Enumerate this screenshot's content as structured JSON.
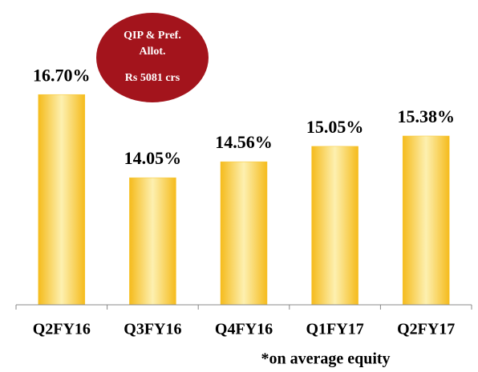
{
  "chart_data": {
    "type": "bar",
    "categories": [
      "Q2FY16",
      "Q3FY16",
      "Q4FY16",
      "Q1FY17",
      "Q2FY17"
    ],
    "values": [
      16.7,
      14.05,
      14.56,
      15.05,
      15.38
    ],
    "value_labels": [
      "16.70%",
      "14.05%",
      "14.56%",
      "15.05%",
      "15.38%"
    ],
    "color": "#f7c52b",
    "ylim": [
      10,
      19
    ],
    "annotation": {
      "lines": [
        "QIP & Pref.",
        "Allot.",
        "Rs 5081 crs"
      ],
      "color": "#a3141c"
    },
    "footnote": "*on average equity"
  }
}
